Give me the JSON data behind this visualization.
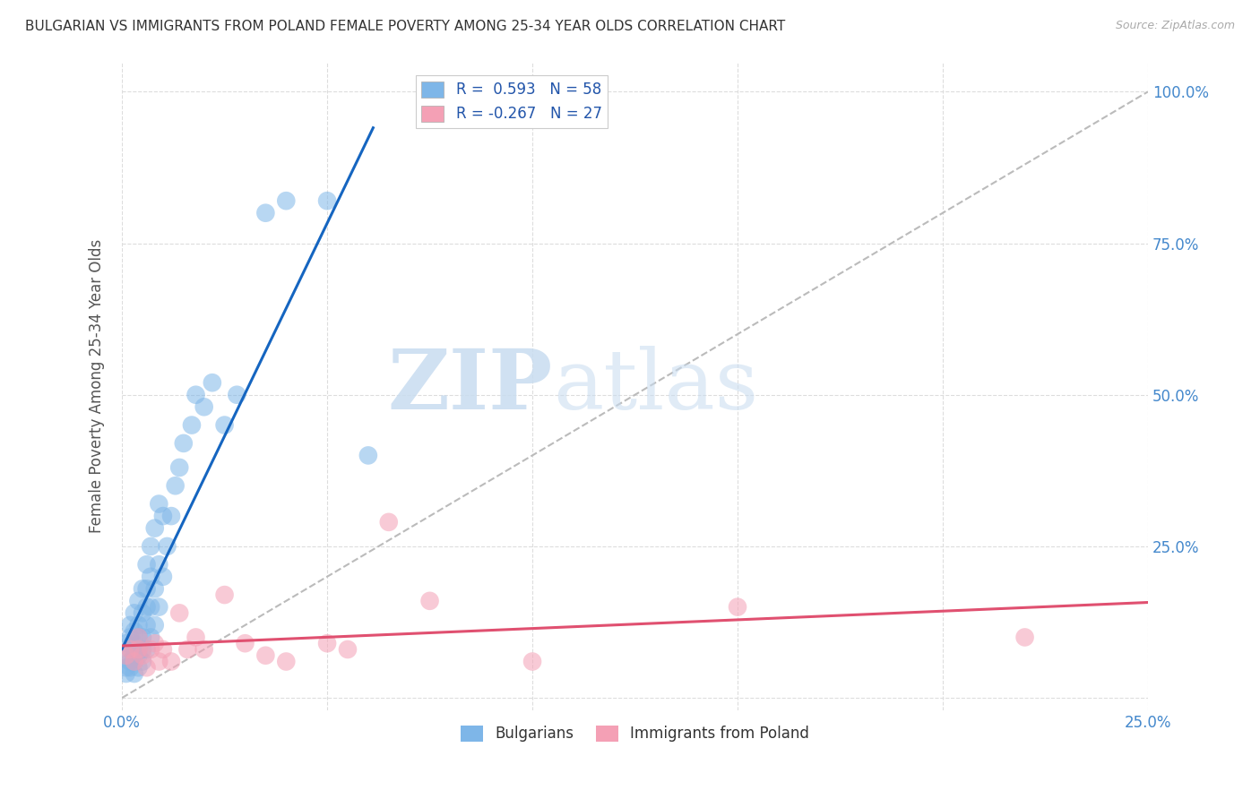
{
  "title": "BULGARIAN VS IMMIGRANTS FROM POLAND FEMALE POVERTY AMONG 25-34 YEAR OLDS CORRELATION CHART",
  "source": "Source: ZipAtlas.com",
  "ylabel": "Female Poverty Among 25-34 Year Olds",
  "xlim": [
    0.0,
    0.25
  ],
  "ylim": [
    -0.02,
    1.05
  ],
  "bulgarian_color": "#7EB6E8",
  "polish_color": "#F4A0B5",
  "trendline_bulgarian_color": "#1565C0",
  "trendline_polish_color": "#E05070",
  "diag_color": "#BBBBBB",
  "legend_R_bulgarian": "R =  0.593",
  "legend_N_bulgarian": "N = 58",
  "legend_R_polish": "R = -0.267",
  "legend_N_polish": "N = 27",
  "legend_label_bulgarian": "Bulgarians",
  "legend_label_polish": "Immigrants from Poland",
  "watermark_zip": "ZIP",
  "watermark_atlas": "atlas",
  "bulgarian_x": [
    0.001,
    0.001,
    0.001,
    0.001,
    0.002,
    0.002,
    0.002,
    0.002,
    0.002,
    0.003,
    0.003,
    0.003,
    0.003,
    0.003,
    0.003,
    0.004,
    0.004,
    0.004,
    0.004,
    0.004,
    0.004,
    0.005,
    0.005,
    0.005,
    0.005,
    0.005,
    0.006,
    0.006,
    0.006,
    0.006,
    0.006,
    0.007,
    0.007,
    0.007,
    0.007,
    0.008,
    0.008,
    0.008,
    0.009,
    0.009,
    0.009,
    0.01,
    0.01,
    0.011,
    0.012,
    0.013,
    0.014,
    0.015,
    0.017,
    0.018,
    0.02,
    0.022,
    0.025,
    0.028,
    0.035,
    0.04,
    0.05,
    0.06
  ],
  "bulgarian_y": [
    0.04,
    0.05,
    0.07,
    0.09,
    0.05,
    0.06,
    0.08,
    0.1,
    0.12,
    0.04,
    0.06,
    0.07,
    0.09,
    0.11,
    0.14,
    0.05,
    0.07,
    0.08,
    0.1,
    0.12,
    0.16,
    0.06,
    0.08,
    0.1,
    0.14,
    0.18,
    0.08,
    0.12,
    0.15,
    0.18,
    0.22,
    0.1,
    0.15,
    0.2,
    0.25,
    0.12,
    0.18,
    0.28,
    0.15,
    0.22,
    0.32,
    0.2,
    0.3,
    0.25,
    0.3,
    0.35,
    0.38,
    0.42,
    0.45,
    0.5,
    0.48,
    0.52,
    0.45,
    0.5,
    0.8,
    0.82,
    0.82,
    0.4
  ],
  "polish_x": [
    0.001,
    0.002,
    0.003,
    0.004,
    0.004,
    0.005,
    0.006,
    0.007,
    0.008,
    0.009,
    0.01,
    0.012,
    0.014,
    0.016,
    0.018,
    0.02,
    0.025,
    0.03,
    0.035,
    0.04,
    0.05,
    0.055,
    0.065,
    0.075,
    0.1,
    0.15,
    0.22
  ],
  "polish_y": [
    0.07,
    0.08,
    0.06,
    0.08,
    0.1,
    0.07,
    0.05,
    0.08,
    0.09,
    0.06,
    0.08,
    0.06,
    0.14,
    0.08,
    0.1,
    0.08,
    0.17,
    0.09,
    0.07,
    0.06,
    0.09,
    0.08,
    0.29,
    0.16,
    0.06,
    0.15,
    0.1
  ],
  "background_color": "#FFFFFF",
  "grid_color": "#DDDDDD",
  "title_color": "#333333",
  "axis_label_color": "#555555",
  "tick_color": "#4488CC"
}
